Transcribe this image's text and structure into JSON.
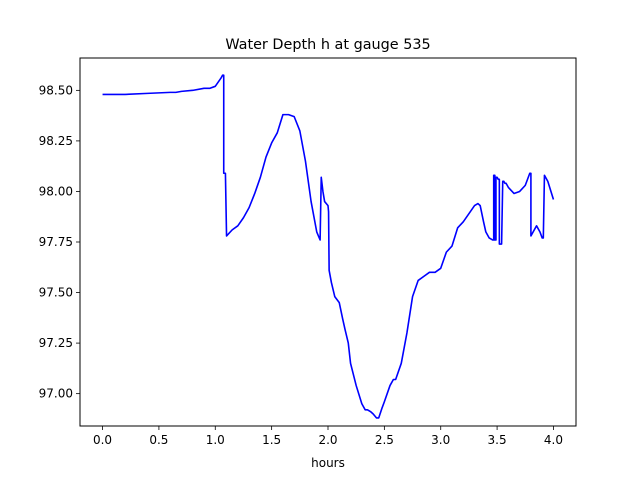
{
  "chart_data": {
    "type": "line",
    "title": "Water Depth h at gauge 535",
    "xlabel": "hours",
    "ylabel": "",
    "xlim": [
      -0.2,
      4.2
    ],
    "ylim": [
      96.84,
      98.66
    ],
    "xticks": [
      0.0,
      0.5,
      1.0,
      1.5,
      2.0,
      2.5,
      3.0,
      3.5,
      4.0
    ],
    "xtick_labels": [
      "0.0",
      "0.5",
      "1.0",
      "1.5",
      "2.0",
      "2.5",
      "3.0",
      "3.5",
      "4.0"
    ],
    "yticks": [
      97.0,
      97.25,
      97.5,
      97.75,
      98.0,
      98.25,
      98.5
    ],
    "ytick_labels": [
      "97.00",
      "97.25",
      "97.50",
      "97.75",
      "98.00",
      "98.25",
      "98.50"
    ],
    "grid": false,
    "series": [
      {
        "color": "#0000ff",
        "x": [
          0.0,
          0.2,
          0.4,
          0.6,
          0.65,
          0.7,
          0.8,
          0.9,
          0.95,
          1.0,
          1.05,
          1.065,
          1.075,
          1.075,
          1.09,
          1.09,
          1.1,
          1.15,
          1.2,
          1.25,
          1.3,
          1.35,
          1.4,
          1.45,
          1.5,
          1.55,
          1.6,
          1.65,
          1.7,
          1.75,
          1.8,
          1.85,
          1.9,
          1.93,
          1.94,
          1.955,
          1.97,
          2.0,
          2.005,
          2.01,
          2.03,
          2.06,
          2.1,
          2.13,
          2.15,
          2.18,
          2.2,
          2.25,
          2.3,
          2.33,
          2.35,
          2.38,
          2.4,
          2.43,
          2.45,
          2.48,
          2.5,
          2.55,
          2.58,
          2.6,
          2.65,
          2.7,
          2.75,
          2.8,
          2.85,
          2.9,
          2.95,
          3.0,
          3.05,
          3.1,
          3.15,
          3.2,
          3.25,
          3.3,
          3.33,
          3.35,
          3.38,
          3.4,
          3.43,
          3.46,
          3.47,
          3.47,
          3.48,
          3.48,
          3.49,
          3.49,
          3.5,
          3.51,
          3.52,
          3.52,
          3.53,
          3.54,
          3.55,
          3.56,
          3.56,
          3.57,
          3.58,
          3.59,
          3.6,
          3.65,
          3.7,
          3.75,
          3.79,
          3.8,
          3.8,
          3.82,
          3.85,
          3.88,
          3.9,
          3.91,
          3.92,
          3.95,
          4.0
        ],
        "y": [
          98.48,
          98.48,
          98.485,
          98.49,
          98.49,
          98.495,
          98.5,
          98.51,
          98.51,
          98.52,
          98.56,
          98.575,
          98.575,
          98.09,
          98.09,
          98.09,
          97.78,
          97.81,
          97.83,
          97.87,
          97.92,
          97.99,
          98.07,
          98.17,
          98.24,
          98.29,
          98.38,
          98.38,
          98.37,
          98.3,
          98.15,
          97.95,
          97.8,
          97.76,
          98.07,
          98.0,
          97.95,
          97.93,
          97.9,
          97.61,
          97.55,
          97.48,
          97.45,
          97.37,
          97.32,
          97.25,
          97.15,
          97.04,
          96.95,
          96.92,
          96.92,
          96.91,
          96.9,
          96.88,
          96.88,
          96.93,
          96.96,
          97.04,
          97.07,
          97.07,
          97.15,
          97.3,
          97.48,
          97.56,
          97.58,
          97.6,
          97.6,
          97.62,
          97.7,
          97.73,
          97.82,
          97.85,
          97.89,
          97.93,
          97.94,
          97.93,
          97.85,
          97.8,
          97.77,
          97.76,
          97.76,
          98.08,
          98.08,
          97.76,
          97.76,
          98.07,
          98.07,
          98.06,
          98.06,
          97.74,
          97.74,
          97.74,
          98.05,
          98.05,
          98.05,
          98.04,
          98.04,
          98.03,
          98.02,
          97.99,
          98.0,
          98.03,
          98.09,
          98.09,
          97.78,
          97.8,
          97.83,
          97.8,
          97.77,
          97.77,
          98.08,
          98.05,
          97.96
        ]
      }
    ]
  }
}
